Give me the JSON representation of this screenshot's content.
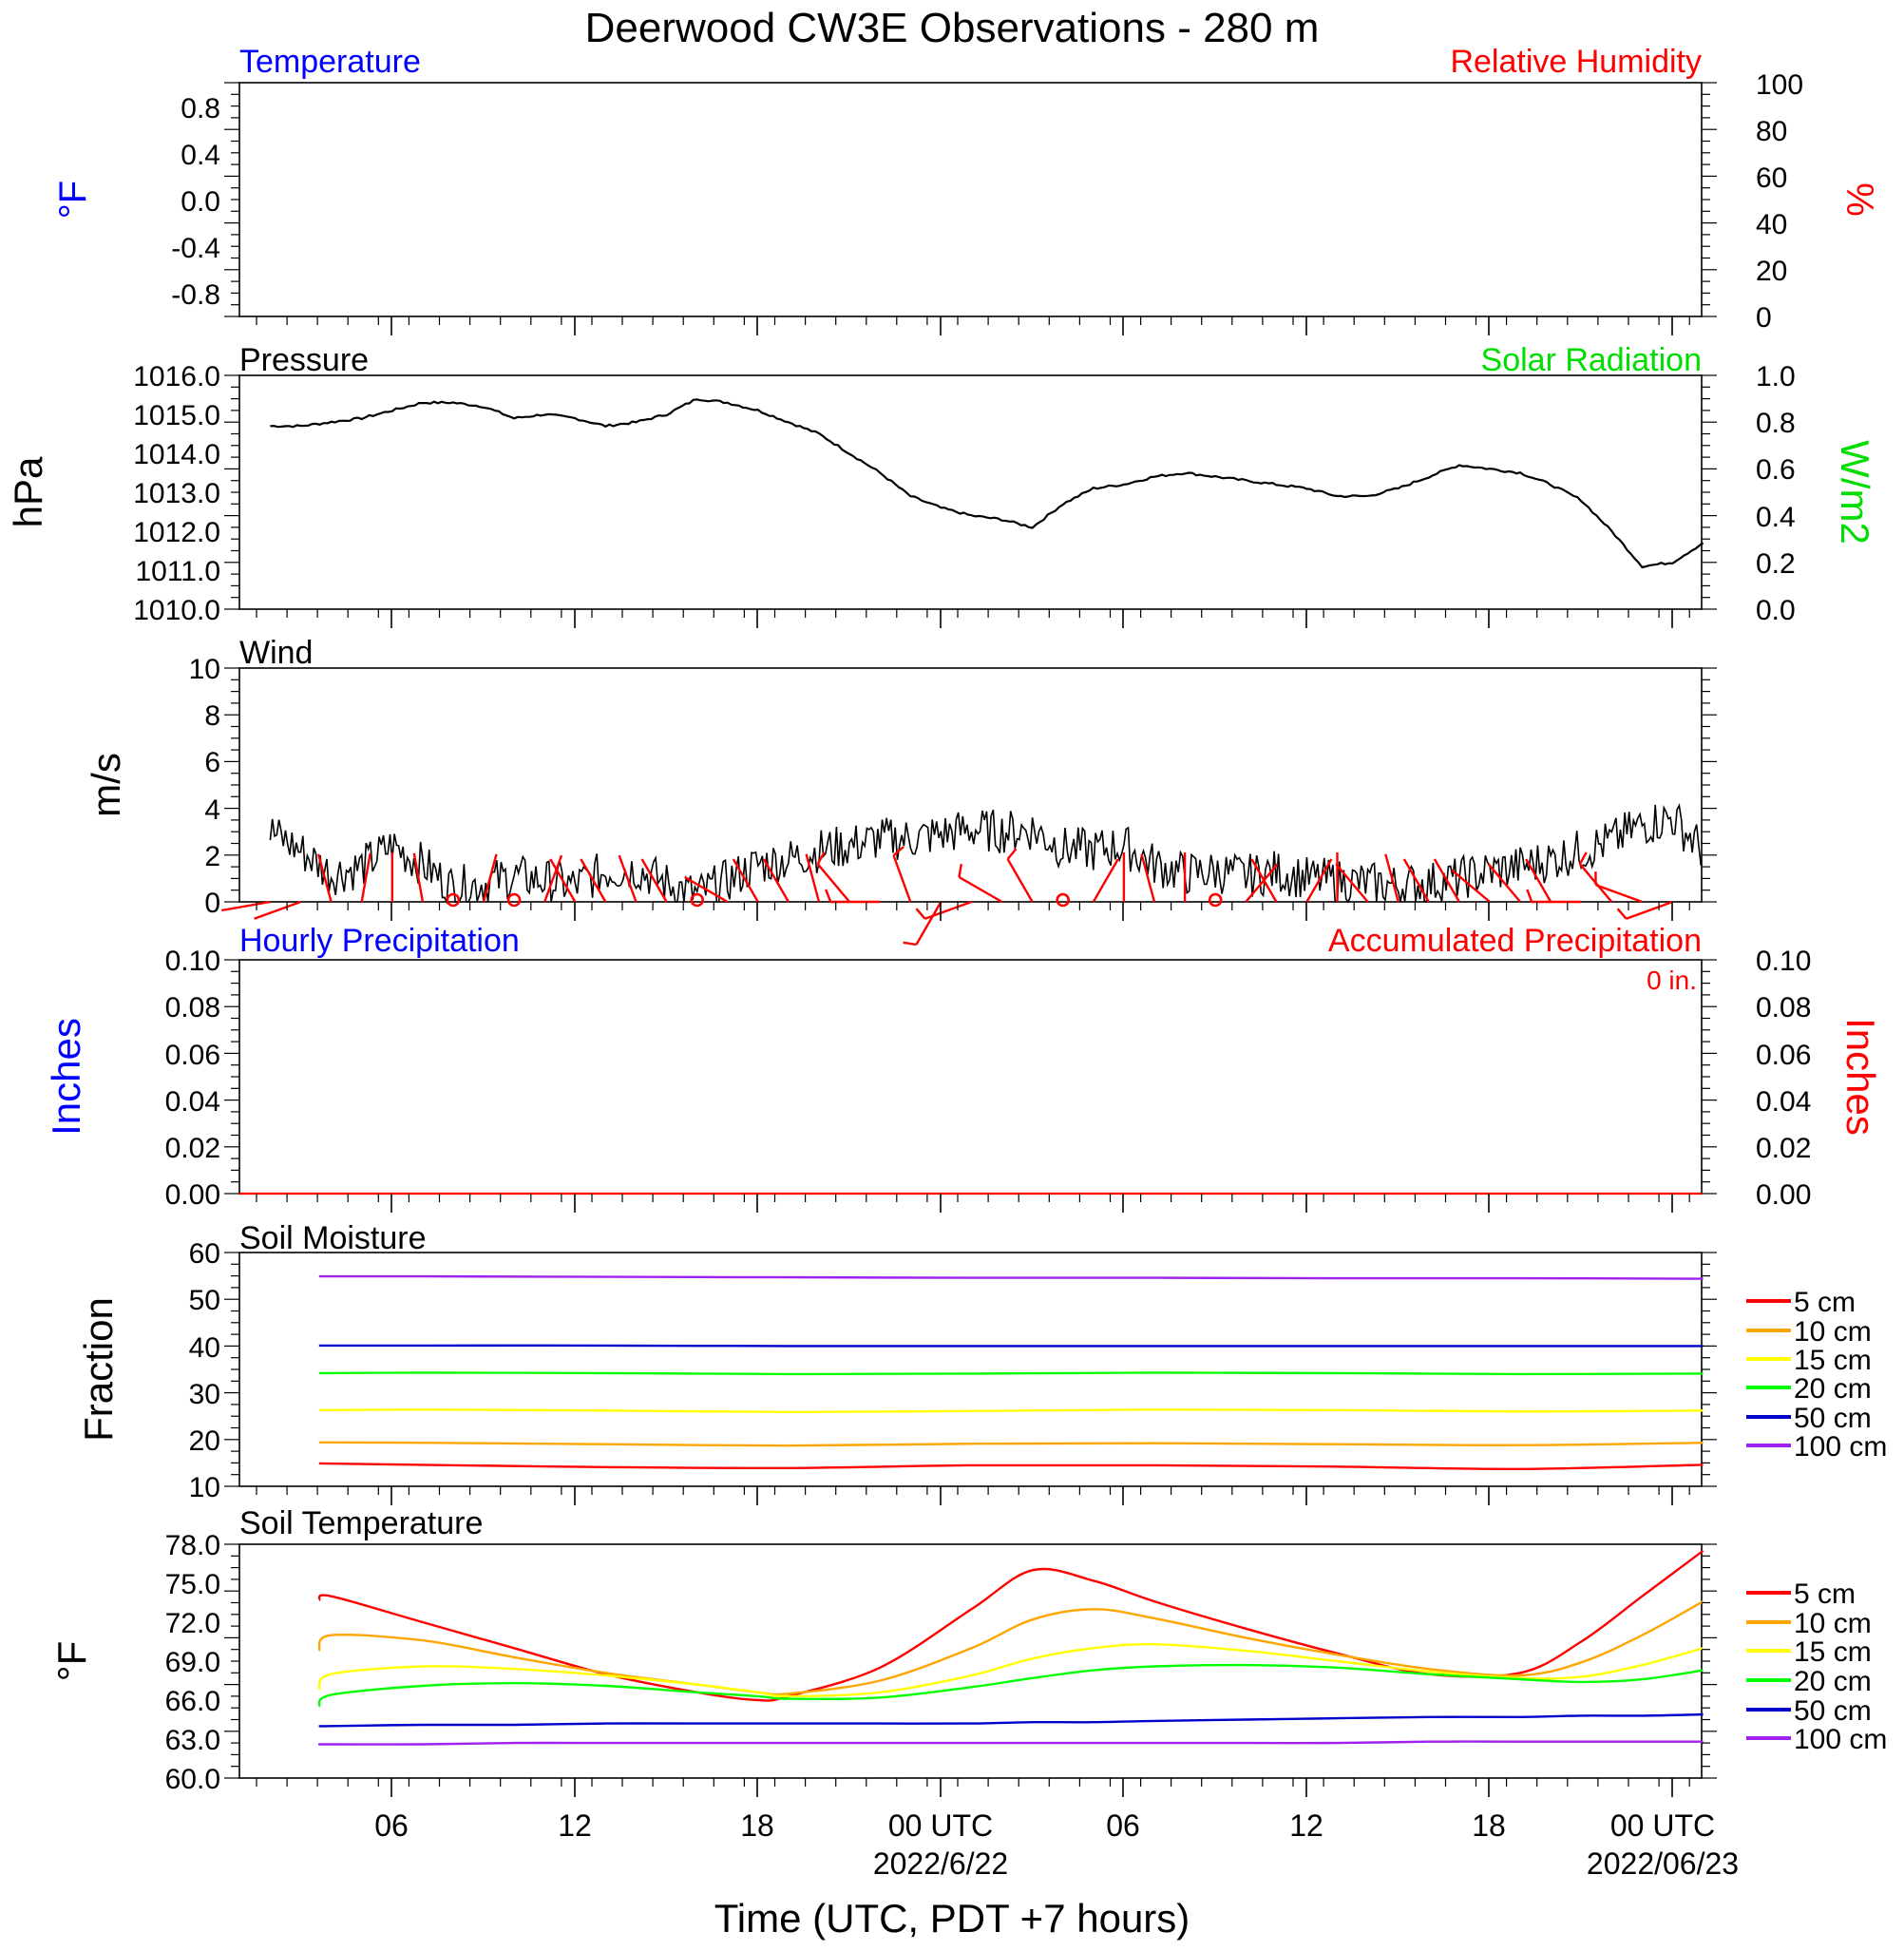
{
  "title": "Deerwood CW3E Observations - 280 m",
  "x_axis": {
    "title": "Time (UTC, PDT +7 hours)",
    "tick_labels": [
      "06",
      "12",
      "18",
      "00 UTC",
      "06",
      "12",
      "18",
      "00 UTC"
    ],
    "date_labels": [
      "2022/6/22",
      "2022/06/23"
    ]
  },
  "chart_data": [
    {
      "id": "temperature",
      "type": "line",
      "title_left": "Temperature",
      "title_right": "Relative Humidity",
      "ylabel_left": "°F",
      "ylabel_right": "%",
      "ylim_left": [
        -1.0,
        1.0
      ],
      "ylim_right": [
        0,
        100
      ],
      "ticks_left": [
        "0.8",
        "0.4",
        "0.0",
        "-0.4",
        "-0.8"
      ],
      "ticks_right": [
        "100",
        "80",
        "60",
        "40",
        "20",
        "0"
      ],
      "series": [],
      "colors": {
        "left": "#0000ff",
        "right": "#ff0000"
      }
    },
    {
      "id": "pressure",
      "type": "line",
      "title_left": "Pressure",
      "title_right": "Solar Radiation",
      "ylabel_left": "hPa",
      "ylabel_right": "W/m2",
      "ylim_left": [
        1010.0,
        1016.0
      ],
      "ylim_right": [
        0.0,
        1.0
      ],
      "ticks_left": [
        "1016.0",
        "1015.0",
        "1014.0",
        "1013.0",
        "1012.0",
        "1011.0",
        "1010.0"
      ],
      "ticks_right": [
        "1.0",
        "0.8",
        "0.6",
        "0.4",
        "0.2",
        "0.0"
      ],
      "x_hours": [
        1,
        2,
        3,
        4,
        5,
        6,
        7,
        8,
        9,
        10,
        11,
        12,
        13,
        14,
        15,
        16,
        17,
        18,
        19,
        20,
        21,
        22,
        23,
        24,
        25,
        26,
        27,
        28,
        29,
        30,
        31,
        32,
        33,
        34,
        35,
        36,
        37,
        38,
        39,
        40,
        41,
        42,
        43,
        44,
        45,
        46,
        47,
        48
      ],
      "values": [
        1014.7,
        1014.7,
        1014.8,
        1014.9,
        1015.1,
        1015.3,
        1015.3,
        1015.2,
        1014.9,
        1015.0,
        1014.9,
        1014.7,
        1014.8,
        1015.0,
        1015.4,
        1015.3,
        1015.1,
        1014.8,
        1014.5,
        1014.0,
        1013.5,
        1012.9,
        1012.6,
        1012.4,
        1012.3,
        1012.1,
        1012.7,
        1013.1,
        1013.2,
        1013.4,
        1013.5,
        1013.4,
        1013.3,
        1013.2,
        1013.1,
        1012.9,
        1012.9,
        1013.1,
        1013.4,
        1013.7,
        1013.6,
        1013.5,
        1013.2,
        1012.8,
        1012.0,
        1011.1,
        1011.2,
        1011.7
      ],
      "colors": {
        "left": "#000000",
        "right": "#00dd00",
        "line": "#000000"
      }
    },
    {
      "id": "wind",
      "type": "line",
      "title_left": "Wind",
      "ylabel_left": "m/s",
      "ylim_left": [
        0,
        10
      ],
      "ticks_left": [
        "10",
        "8",
        "6",
        "4",
        "2",
        "0"
      ],
      "x_hours": [
        1,
        2,
        3,
        4,
        5,
        6,
        7,
        8,
        9,
        10,
        11,
        12,
        13,
        14,
        15,
        16,
        17,
        18,
        19,
        20,
        21,
        22,
        23,
        24,
        25,
        26,
        27,
        28,
        29,
        30,
        31,
        32,
        33,
        34,
        35,
        36,
        37,
        38,
        39,
        40,
        41,
        42,
        43,
        44,
        45,
        46,
        47,
        48
      ],
      "values": [
        3.0,
        2.2,
        1.2,
        1.5,
        2.4,
        1.6,
        0.6,
        0.8,
        1.1,
        0.9,
        0.7,
        1.3,
        1.4,
        0.8,
        0.3,
        0.9,
        1.6,
        1.8,
        2.2,
        2.4,
        2.7,
        2.7,
        2.9,
        3.1,
        3.0,
        3.1,
        2.3,
        2.2,
        2.4,
        1.6,
        1.2,
        1.3,
        1.1,
        1.3,
        1.0,
        0.9,
        0.8,
        0.7,
        0.8,
        1.0,
        1.3,
        1.5,
        1.8,
        2.2,
        2.6,
        3.3,
        3.6,
        2.2
      ],
      "barb_hours": [
        1,
        2,
        3,
        4,
        5,
        6,
        7,
        8,
        9,
        10,
        11,
        12,
        13,
        14,
        15,
        16,
        17,
        18,
        19,
        20,
        21,
        22,
        23,
        24,
        25,
        26,
        27,
        28,
        29,
        30,
        31,
        32,
        33,
        34,
        35,
        36,
        37,
        38,
        39,
        40,
        41,
        42,
        43,
        44,
        45,
        46,
        47
      ],
      "barb_dir_deg": [
        260,
        250,
        345,
        10,
        0,
        350,
        0,
        15,
        0,
        20,
        330,
        330,
        340,
        330,
        310,
        300,
        330,
        330,
        345,
        320,
        270,
        340,
        210,
        250,
        300,
        330,
        0,
        30,
        0,
        345,
        0,
        20,
        40,
        330,
        30,
        0,
        320,
        345,
        330,
        330,
        310,
        320,
        330,
        270,
        320,
        290,
        250
      ],
      "barb_speed": [
        1.0,
        1.2,
        1.0,
        0.8,
        0.8,
        0.7,
        0.2,
        0.8,
        0.3,
        0.7,
        0.8,
        0.8,
        0.9,
        0.6,
        0.2,
        1.1,
        1.4,
        1.6,
        1.7,
        2.1,
        2.4,
        2.1,
        2.3,
        2.9,
        3.1,
        2.8,
        0.2,
        1.2,
        1.6,
        1.3,
        0.9,
        0.2,
        0.8,
        0.6,
        0.8,
        0.9,
        0.6,
        0.8,
        0.4,
        1.0,
        1.1,
        1.3,
        1.2,
        1.9,
        2.1,
        2.4,
        2.5
      ],
      "colors": {
        "left": "#000000",
        "line": "#000000",
        "barbs": "#ff0000"
      }
    },
    {
      "id": "precipitation",
      "type": "line",
      "title_left": "Hourly Precipitation",
      "title_right": "Accumulated Precipitation",
      "annotation": "0 in.",
      "ylabel_left": "Inches",
      "ylabel_right": "Inches",
      "ylim_left": [
        0.0,
        0.1
      ],
      "ylim_right": [
        0.0,
        0.1
      ],
      "ticks_left": [
        "0.10",
        "0.08",
        "0.06",
        "0.04",
        "0.02",
        "0.00"
      ],
      "ticks_right": [
        "0.10",
        "0.08",
        "0.06",
        "0.04",
        "0.02",
        "0.00"
      ],
      "x_hours": [
        0,
        48
      ],
      "hourly": [
        0.0,
        0.0
      ],
      "accumulated": [
        0.0,
        0.0
      ],
      "colors": {
        "left": "#0000ff",
        "right": "#ff0000"
      }
    },
    {
      "id": "soil_moisture",
      "type": "line",
      "title_left": "Soil Moisture",
      "ylabel_left": "Fraction",
      "ylim_left": [
        10,
        60
      ],
      "ticks_left": [
        "60",
        "50",
        "40",
        "30",
        "20",
        "10"
      ],
      "x_hours": [
        1,
        6,
        12,
        18,
        24,
        30,
        36,
        42,
        48
      ],
      "series": [
        {
          "name": "5 cm",
          "color": "#ff0000",
          "values": [
            14.9,
            14.6,
            14.1,
            13.9,
            14.5,
            14.5,
            14.2,
            13.7,
            14.6
          ]
        },
        {
          "name": "10 cm",
          "color": "#ffa500",
          "values": [
            19.4,
            19.3,
            19.0,
            18.7,
            19.1,
            19.2,
            19.0,
            18.8,
            19.3
          ]
        },
        {
          "name": "15 cm",
          "color": "#ffff00",
          "values": [
            26.3,
            26.4,
            26.2,
            25.9,
            26.1,
            26.4,
            26.3,
            26.0,
            26.2
          ]
        },
        {
          "name": "20 cm",
          "color": "#00ff00",
          "values": [
            34.2,
            34.3,
            34.2,
            34.0,
            34.1,
            34.3,
            34.2,
            34.0,
            34.1
          ]
        },
        {
          "name": "50 cm",
          "color": "#0000cc",
          "values": [
            40.1,
            40.1,
            40.1,
            40.0,
            40.0,
            40.0,
            40.0,
            40.0,
            40.0
          ]
        },
        {
          "name": "100 cm",
          "color": "#a020f0",
          "values": [
            54.9,
            54.9,
            54.8,
            54.7,
            54.6,
            54.6,
            54.5,
            54.5,
            54.4
          ]
        }
      ]
    },
    {
      "id": "soil_temperature",
      "type": "line",
      "title_left": "Soil Temperature",
      "ylabel_left": "°F",
      "ylim_left": [
        60.0,
        78.0
      ],
      "ticks_left": [
        "78.0",
        "75.0",
        "72.0",
        "69.0",
        "66.0",
        "63.0",
        "60.0"
      ],
      "x_hours": [
        1,
        3,
        6,
        9,
        12,
        15,
        17,
        18,
        21,
        24,
        26,
        28,
        30,
        33,
        36,
        39,
        42,
        44,
        46,
        48
      ],
      "series": [
        {
          "name": "5 cm",
          "color": "#ff0000",
          "values": [
            73.7,
            74.0,
            72.0,
            70.0,
            68.0,
            66.6,
            66.0,
            66.3,
            68.5,
            73.0,
            76.0,
            75.2,
            73.6,
            71.5,
            69.6,
            68.0,
            68.1,
            70.5,
            74.0,
            77.5
          ]
        },
        {
          "name": "10 cm",
          "color": "#ffa500",
          "values": [
            69.8,
            71.0,
            70.6,
            69.3,
            68.1,
            67.2,
            66.6,
            66.5,
            67.5,
            70.0,
            72.2,
            73.0,
            72.3,
            70.8,
            69.5,
            68.4,
            67.9,
            68.9,
            71.0,
            73.6
          ]
        },
        {
          "name": "15 cm",
          "color": "#ffff00",
          "values": [
            66.8,
            68.0,
            68.6,
            68.4,
            67.9,
            67.2,
            66.6,
            66.3,
            66.6,
            67.9,
            69.2,
            70.0,
            70.3,
            69.8,
            69.0,
            68.2,
            67.7,
            67.8,
            68.7,
            70.0
          ]
        },
        {
          "name": "20 cm",
          "color": "#00ff00",
          "values": [
            65.5,
            66.4,
            67.1,
            67.3,
            67.1,
            66.6,
            66.3,
            66.1,
            66.2,
            67.0,
            67.7,
            68.3,
            68.6,
            68.7,
            68.5,
            68.0,
            67.6,
            67.4,
            67.6,
            68.3
          ]
        },
        {
          "name": "50 cm",
          "color": "#0000cc",
          "values": [
            64.0,
            64.0,
            64.1,
            64.1,
            64.2,
            64.2,
            64.2,
            64.2,
            64.2,
            64.2,
            64.3,
            64.3,
            64.4,
            64.5,
            64.6,
            64.7,
            64.7,
            64.8,
            64.8,
            64.9
          ]
        },
        {
          "name": "100 cm",
          "color": "#a020f0",
          "values": [
            62.6,
            62.6,
            62.6,
            62.7,
            62.7,
            62.7,
            62.7,
            62.7,
            62.7,
            62.7,
            62.7,
            62.7,
            62.7,
            62.7,
            62.7,
            62.8,
            62.8,
            62.8,
            62.8,
            62.8
          ]
        }
      ]
    }
  ]
}
